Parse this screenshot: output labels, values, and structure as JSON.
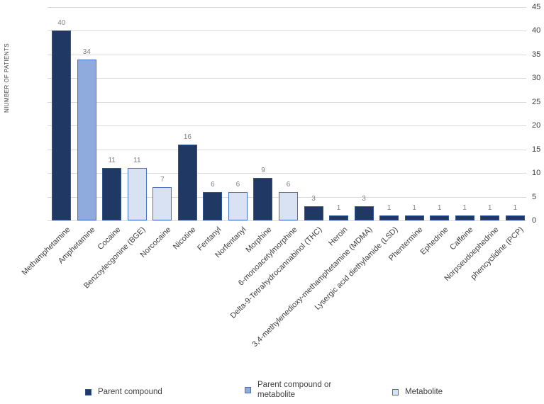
{
  "chart_data": {
    "type": "bar",
    "title": "",
    "xlabel": "",
    "ylabel": "NIUMBER OF PATIENTS",
    "ylim": [
      0,
      45
    ],
    "yticks": [
      0,
      5,
      10,
      15,
      20,
      25,
      30,
      35,
      40,
      45
    ],
    "y_axis_side": "right",
    "grid": true,
    "legend_position": "bottom",
    "categories": [
      "Methamphetamine",
      "Amphetamine",
      "Cocaine",
      "Benzoylecgonine (BGE)",
      "Norcocaine",
      "Nicotine",
      "Fentanyl",
      "Norfentanyl",
      "Morphine",
      "6-monoacetylmorphine",
      "Delta-9-Tetrahydrocannabinol (THC)",
      "Heroin",
      "3,4-methylenedioxy-methamphetamine (MDMA)",
      "Lysergic acid diethylamide (LSD)",
      "Phentermine",
      "Ephedrine",
      "Caffeine",
      "Norpseudoephedrine",
      "phencyclidine (PCP)"
    ],
    "values": [
      40,
      34,
      11,
      11,
      7,
      16,
      6,
      6,
      9,
      6,
      3,
      1,
      3,
      1,
      1,
      1,
      1,
      1,
      1
    ],
    "bar_groups": [
      "parent",
      "parent_or_metabolite",
      "parent",
      "metabolite",
      "metabolite",
      "parent",
      "parent",
      "metabolite",
      "parent",
      "metabolite",
      "parent",
      "parent",
      "parent",
      "parent",
      "parent",
      "parent",
      "parent",
      "parent",
      "parent"
    ],
    "legend": [
      {
        "id": "parent",
        "label": "Parent compound"
      },
      {
        "id": "parent_or_metabolite",
        "label": "Parent compound or metabolite"
      },
      {
        "id": "metabolite",
        "label": "Metabolite"
      }
    ],
    "colors": {
      "parent": {
        "fill": "#1F3864",
        "border": "#2F5597"
      },
      "parent_or_metabolite": {
        "fill": "#8FAADC",
        "border": "#4472C4"
      },
      "metabolite": {
        "fill": "#D9E2F3",
        "border": "#4472C4"
      },
      "gridline": "#D9D9D9",
      "value_label": "#808080",
      "axis_text": "#404040"
    }
  }
}
